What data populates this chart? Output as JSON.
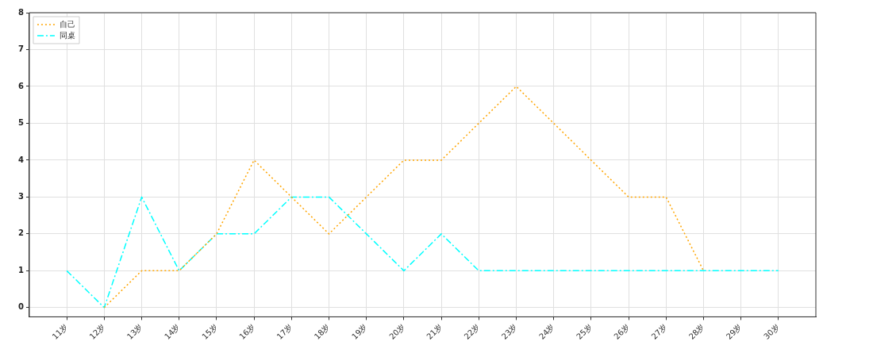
{
  "chart_data": {
    "type": "line",
    "categories": [
      "11岁",
      "12岁",
      "13岁",
      "14岁",
      "15岁",
      "16岁",
      "17岁",
      "18岁",
      "19岁",
      "20岁",
      "21岁",
      "22岁",
      "23岁",
      "24岁",
      "25岁",
      "26岁",
      "27岁",
      "28岁",
      "29岁",
      "30岁"
    ],
    "series": [
      {
        "name": "自己",
        "color": "#ffa500",
        "line_style": "dotted",
        "values": [
          null,
          0,
          1,
          1,
          2,
          4,
          3,
          2,
          3,
          4,
          4,
          5,
          6,
          5,
          4,
          3,
          3,
          1,
          null,
          null
        ]
      },
      {
        "name": "同桌",
        "color": "#00ffff",
        "line_style": "dashdot",
        "values": [
          1,
          0,
          3,
          1,
          2,
          2,
          3,
          3,
          2,
          1,
          2,
          1,
          1,
          1,
          1,
          1,
          1,
          1,
          1,
          1
        ]
      }
    ],
    "ylim": [
      -0.25,
      8
    ],
    "yticks": [
      0,
      1,
      2,
      3,
      4,
      5,
      6,
      7,
      8
    ],
    "grid": true,
    "legend": "top left",
    "marker": "none"
  }
}
